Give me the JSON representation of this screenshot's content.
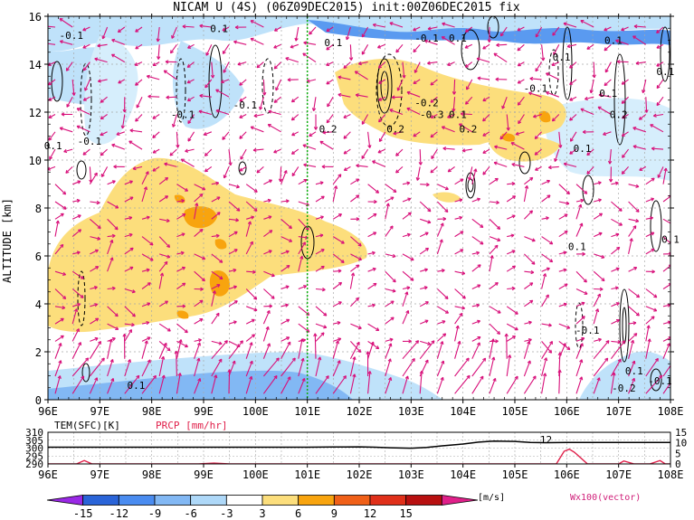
{
  "title": "NICAM U (4S) (06Z09DEC2015) init:00Z06DEC2015 fix",
  "colors": {
    "vector": "#d8107a",
    "marker": "#10b010",
    "temp": "#000000",
    "prcp": "#e0204a"
  },
  "chart_data": [
    {
      "type": "heatmap",
      "title": "NICAM U (4S) (06Z09DEC2015) init:00Z06DEC2015 fix",
      "ylabel": "ALTITUDE [km]",
      "xlim": [
        96,
        108
      ],
      "ylim": [
        0,
        16
      ],
      "x_ticks": [
        "96E",
        "97E",
        "98E",
        "99E",
        "100E",
        "101E",
        "102E",
        "103E",
        "104E",
        "105E",
        "106E",
        "107E",
        "108E"
      ],
      "y_ticks": [
        "0",
        "2",
        "4",
        "6",
        "8",
        "10",
        "12",
        "14",
        "16"
      ],
      "marker_line_x": 101,
      "grid": true,
      "contour_labels": [
        {
          "text": "-0.1",
          "x": 96.45,
          "y": 15.2
        },
        {
          "text": "0.1",
          "x": 99.3,
          "y": 15.5
        },
        {
          "text": "0.1",
          "x": 101.5,
          "y": 14.9
        },
        {
          "text": "-0.1",
          "x": 103.3,
          "y": 15.1
        },
        {
          "text": "0.1",
          "x": 103.9,
          "y": 15.1
        },
        {
          "text": "0.1",
          "x": 106.9,
          "y": 15.0
        },
        {
          "text": "0.1",
          "x": 105.9,
          "y": 14.3
        },
        {
          "text": "0.1",
          "x": 107.9,
          "y": 13.7
        },
        {
          "text": "-0.1",
          "x": 105.4,
          "y": 13.0
        },
        {
          "text": "0.1",
          "x": 106.8,
          "y": 12.8
        },
        {
          "text": "-0.1",
          "x": 98.6,
          "y": 11.9
        },
        {
          "text": "-0.1",
          "x": 99.8,
          "y": 12.3
        },
        {
          "text": "-0.2",
          "x": 103.3,
          "y": 12.4
        },
        {
          "text": "-0.3",
          "x": 103.4,
          "y": 11.9
        },
        {
          "text": "0.1",
          "x": 103.9,
          "y": 11.9
        },
        {
          "text": "0.2",
          "x": 107.0,
          "y": 11.9
        },
        {
          "text": "0.2",
          "x": 101.4,
          "y": 11.3
        },
        {
          "text": "0.2",
          "x": 102.7,
          "y": 11.3
        },
        {
          "text": "0.2",
          "x": 104.1,
          "y": 11.3
        },
        {
          "text": "0.1",
          "x": 96.1,
          "y": 10.6
        },
        {
          "text": "-0.1",
          "x": 96.8,
          "y": 10.8
        },
        {
          "text": "0.1",
          "x": 106.3,
          "y": 10.5
        },
        {
          "text": "0.1",
          "x": 106.2,
          "y": 6.4
        },
        {
          "text": "0.1",
          "x": 108.0,
          "y": 6.7
        },
        {
          "text": "-0.1",
          "x": 106.4,
          "y": 2.9
        },
        {
          "text": "0.1",
          "x": 107.3,
          "y": 1.2
        },
        {
          "text": "0.1",
          "x": 97.7,
          "y": 0.6
        },
        {
          "text": "-0.2",
          "x": 107.1,
          "y": 0.5
        },
        {
          "text": "-0.1",
          "x": 107.8,
          "y": 0.8
        }
      ]
    },
    {
      "type": "line",
      "x_ticks": [
        "96E",
        "97E",
        "98E",
        "99E",
        "100E",
        "101E",
        "102E",
        "103E",
        "104E",
        "105E",
        "106E",
        "107E",
        "108E"
      ],
      "xlim": [
        96,
        108
      ],
      "left_axis_label": "TEM(SFC)[K]",
      "right_axis_label": "PRCP [mm/hr]",
      "left_ticks": [
        "310",
        "305",
        "300",
        "295",
        "290"
      ],
      "right_ticks": [
        "15",
        "10",
        "5",
        "0"
      ],
      "ylim_left": [
        290,
        310
      ],
      "ylim_right": [
        0,
        15
      ],
      "series": [
        {
          "name": "TEM(SFC)[K]",
          "x": [
            96,
            96.5,
            97,
            97.5,
            98,
            98.5,
            99,
            99.5,
            100,
            100.5,
            101,
            101.5,
            102,
            102.3,
            102.6,
            103,
            103.3,
            103.6,
            104,
            104.3,
            104.6,
            105,
            105.3,
            105.6,
            106,
            106.5,
            107,
            107.5,
            108
          ],
          "values": [
            300.6,
            300.6,
            300.6,
            300.6,
            300.6,
            300.6,
            300.6,
            300.6,
            300.6,
            300.6,
            300.6,
            300.7,
            300.8,
            300.6,
            300.2,
            299.9,
            300.4,
            301.4,
            302.6,
            303.8,
            304.4,
            304.2,
            303.6,
            303.4,
            303.6,
            303.6,
            303.6,
            303.6,
            303.6
          ]
        },
        {
          "name": "PRCP [mm/hr]",
          "x": [
            96,
            96.55,
            96.7,
            96.85,
            97,
            98,
            98.9,
            99.2,
            99.5,
            100,
            101,
            102,
            103,
            104,
            105,
            105.8,
            105.95,
            106.05,
            106.15,
            106.4,
            106.8,
            107,
            107.1,
            107.3,
            107.6,
            107.8,
            107.9,
            108
          ],
          "values": [
            0,
            0,
            1.6,
            0,
            0,
            0,
            0,
            0.4,
            0,
            0,
            0,
            0,
            0,
            0,
            0,
            0,
            6,
            7,
            5.5,
            0,
            0,
            0,
            1.4,
            0,
            0,
            1.6,
            0,
            0
          ]
        }
      ],
      "annotation": "12",
      "annotation_x": 105.8
    },
    {
      "type": "bar",
      "title": "colorbar",
      "unit": "[m/s]",
      "tick_labels": [
        "-15",
        "-12",
        "-9",
        "-6",
        "-3",
        "3",
        "6",
        "9",
        "12",
        "15"
      ],
      "colors": [
        "#9a28e6",
        "#2a64d8",
        "#4a8cf0",
        "#82b8f4",
        "#aed8f8",
        "#ffffff",
        "#fcde7c",
        "#f8a40e",
        "#f06018",
        "#e0301a",
        "#b81010",
        "#e0208a"
      ],
      "vector_label": "Wx100(vector)"
    }
  ]
}
